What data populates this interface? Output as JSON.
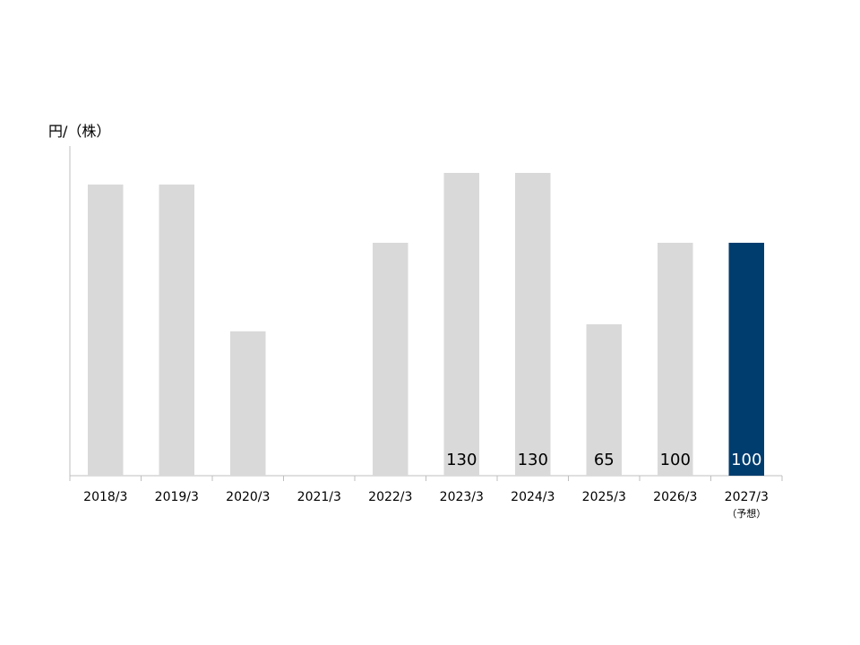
{
  "chart_data": {
    "type": "bar",
    "ylabel": "円/（株）",
    "categories": [
      "2018/3",
      "2019/3",
      "2020/3",
      "2021/3",
      "2022/3",
      "2023/3",
      "2024/3",
      "2025/3",
      "2026/3",
      "2027/3"
    ],
    "category_notes": [
      "",
      "",
      "",
      "",
      "",
      "",
      "",
      "",
      "",
      "（予想）"
    ],
    "values": [
      125,
      125,
      62,
      0,
      100,
      130,
      130,
      65,
      100,
      100
    ],
    "data_labels": [
      "",
      "",
      "",
      "",
      "",
      "130",
      "130",
      "65",
      "100",
      "100"
    ],
    "highlight_index": 9,
    "ylim": [
      0,
      140
    ],
    "grid": false,
    "colors": {
      "bar": "#d9d9d9",
      "highlight": "#003d6f",
      "label_on_highlight": "#ffffff",
      "label": "#000000",
      "axis": "#bfbfbf"
    }
  }
}
